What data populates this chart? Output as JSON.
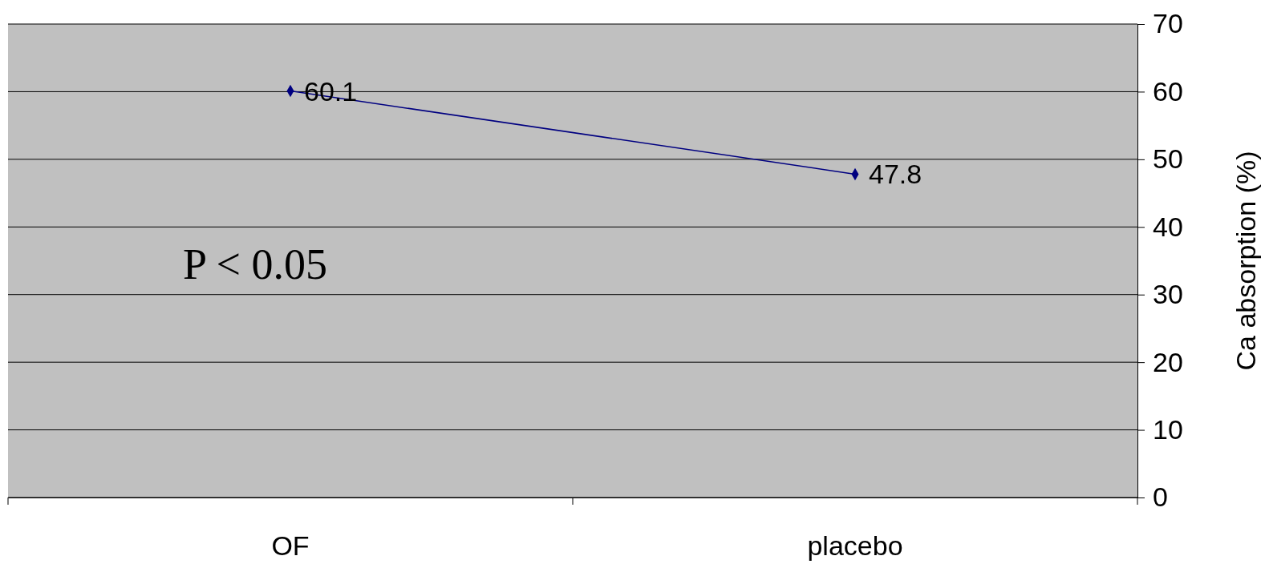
{
  "chart_data": {
    "type": "line",
    "categories": [
      "OF",
      "placebo"
    ],
    "series": [
      {
        "color": "#000080",
        "values": [
          60.1,
          47.8
        ]
      }
    ],
    "ylim": [
      0,
      70
    ],
    "yticks": [
      0,
      10,
      20,
      30,
      40,
      50,
      60,
      70
    ],
    "ylabel": "Ca absorption (%)",
    "grid": "y",
    "marker": "diamond",
    "line_style": "solid",
    "data_labels": true,
    "annotations": [
      "P < 0.05"
    ]
  }
}
